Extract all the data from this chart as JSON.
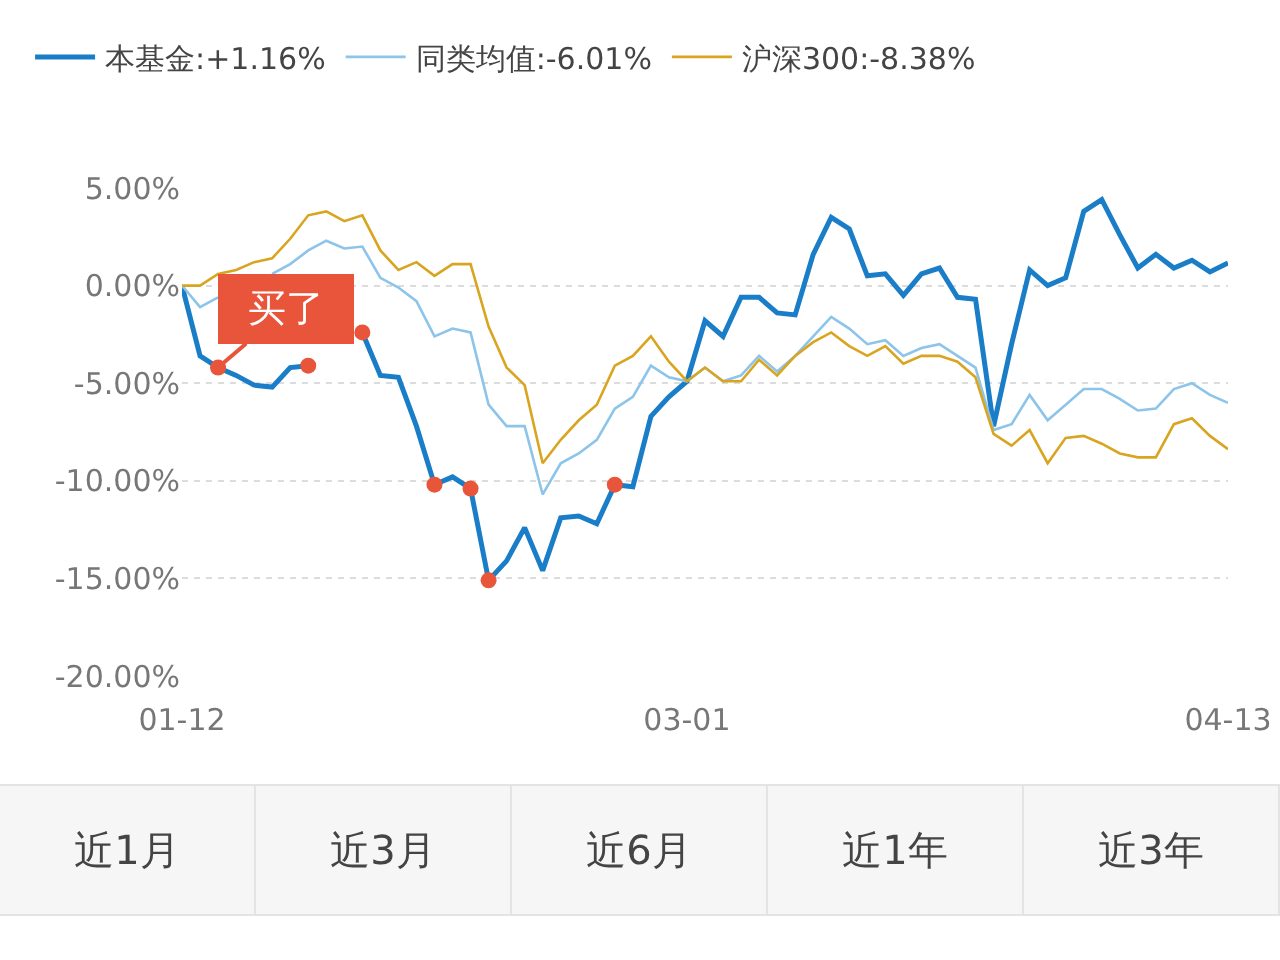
{
  "chart_data": {
    "type": "line",
    "categories": [
      "01-12",
      null,
      null,
      null,
      null,
      null,
      null,
      null,
      null,
      null,
      null,
      null,
      null,
      null,
      null,
      null,
      null,
      null,
      null,
      null,
      null,
      null,
      null,
      null,
      null,
      null,
      null,
      null,
      "03-01",
      null,
      null,
      null,
      null,
      null,
      null,
      null,
      null,
      null,
      null,
      null,
      null,
      null,
      null,
      null,
      null,
      null,
      null,
      null,
      null,
      null,
      null,
      null,
      null,
      null,
      null,
      null,
      null,
      null,
      "04-13"
    ],
    "series": [
      {
        "name": "本基金:+1.16%",
        "color": "#1a7dc8",
        "values": [
          0,
          -3.6,
          -4.2,
          -4.6,
          -5.1,
          -5.2,
          -4.2,
          -4.1,
          null,
          null,
          -2.4,
          -4.6,
          -4.7,
          -7.2,
          -10.2,
          -9.8,
          -10.4,
          -15.1,
          -14.1,
          -12.4,
          -14.6,
          -11.9,
          -11.8,
          -12.2,
          -10.2,
          -10.3,
          -6.7,
          -5.7,
          -4.9,
          -1.8,
          -2.6,
          -0.6,
          -0.6,
          -1.4,
          -1.5,
          1.6,
          3.5,
          2.9,
          0.5,
          0.6,
          -0.5,
          0.6,
          0.9,
          -0.6,
          -0.7,
          -7.2,
          -3.0,
          0.8,
          0,
          0.4,
          3.8,
          4.4,
          2.6,
          0.9,
          1.6,
          0.9,
          1.3,
          0.7,
          1.16
        ]
      },
      {
        "name": "同类均值:-6.01%",
        "color": "#8cc4ea",
        "values": [
          0,
          -1.1,
          -0.6,
          null,
          null,
          0.6,
          1.1,
          1.8,
          2.3,
          1.9,
          2.0,
          0.4,
          -0.1,
          -0.8,
          -2.6,
          -2.2,
          -2.4,
          -6.1,
          -7.2,
          -7.2,
          -10.7,
          -9.1,
          -8.6,
          -7.9,
          -6.3,
          -5.7,
          -4.1,
          -4.7,
          -4.9,
          -4.2,
          -4.9,
          -4.6,
          -3.6,
          -4.4,
          -3.6,
          -2.6,
          -1.6,
          -2.2,
          -3.0,
          -2.8,
          -3.6,
          -3.2,
          -3.0,
          -3.6,
          -4.2,
          -7.4,
          -7.1,
          -5.6,
          -6.9,
          -6.1,
          -5.3,
          -5.3,
          -5.8,
          -6.4,
          -6.3,
          -5.3,
          -5.0,
          -5.6,
          -6.01
        ]
      },
      {
        "name": "沪深300:-8.38%",
        "color": "#d9a520",
        "values": [
          0,
          0,
          0.6,
          0.8,
          1.2,
          1.4,
          2.4,
          3.6,
          3.8,
          3.3,
          3.6,
          1.8,
          0.8,
          1.2,
          0.5,
          1.1,
          1.1,
          -2.1,
          -4.2,
          -5.1,
          -9.1,
          -7.9,
          -6.9,
          -6.1,
          -4.1,
          -3.6,
          -2.6,
          -3.9,
          -4.9,
          -4.2,
          -4.9,
          -4.9,
          -3.8,
          -4.6,
          -3.6,
          -2.9,
          -2.4,
          -3.1,
          -3.6,
          -3.1,
          -4.0,
          -3.6,
          -3.6,
          -3.9,
          -4.7,
          -7.6,
          -8.2,
          -7.4,
          -9.1,
          -7.8,
          -7.7,
          -8.1,
          -8.6,
          -8.8,
          -8.8,
          -7.1,
          -6.8,
          -7.7,
          -8.38
        ]
      },
      {
        "type": "scatter",
        "color": "#e8553a",
        "values": [
          null,
          null,
          -4.2,
          null,
          null,
          null,
          null,
          -4.1,
          null,
          null,
          -2.4,
          null,
          null,
          null,
          -10.2,
          null,
          -10.4,
          -15.1,
          null,
          null,
          null,
          null,
          null,
          null,
          -10.2,
          null,
          null,
          null,
          null,
          null,
          null,
          null,
          null,
          null,
          null,
          null,
          null,
          null,
          null,
          null,
          null,
          null,
          null,
          null,
          null,
          null,
          null,
          null,
          null,
          null,
          null,
          null,
          null,
          null,
          null,
          null,
          null,
          null,
          null
        ]
      }
    ],
    "ylim": [
      -20,
      5
    ],
    "yticks": [
      {
        "value": 5,
        "label": "5.00%"
      },
      {
        "value": 0,
        "label": "0.00%"
      },
      {
        "value": -5,
        "label": "-5.00%"
      },
      {
        "value": -10,
        "label": "-10.00%"
      },
      {
        "value": -15,
        "label": "-15.00%"
      },
      {
        "value": -20,
        "label": "-20.00%"
      }
    ],
    "grid": "y",
    "legend": "top",
    "line_style": "solid",
    "annotations": [
      {
        "text": "买了",
        "y": -4.2
      },
      "近1月",
      "近3月",
      "近6月",
      "近1年",
      "近3年"
    ]
  }
}
